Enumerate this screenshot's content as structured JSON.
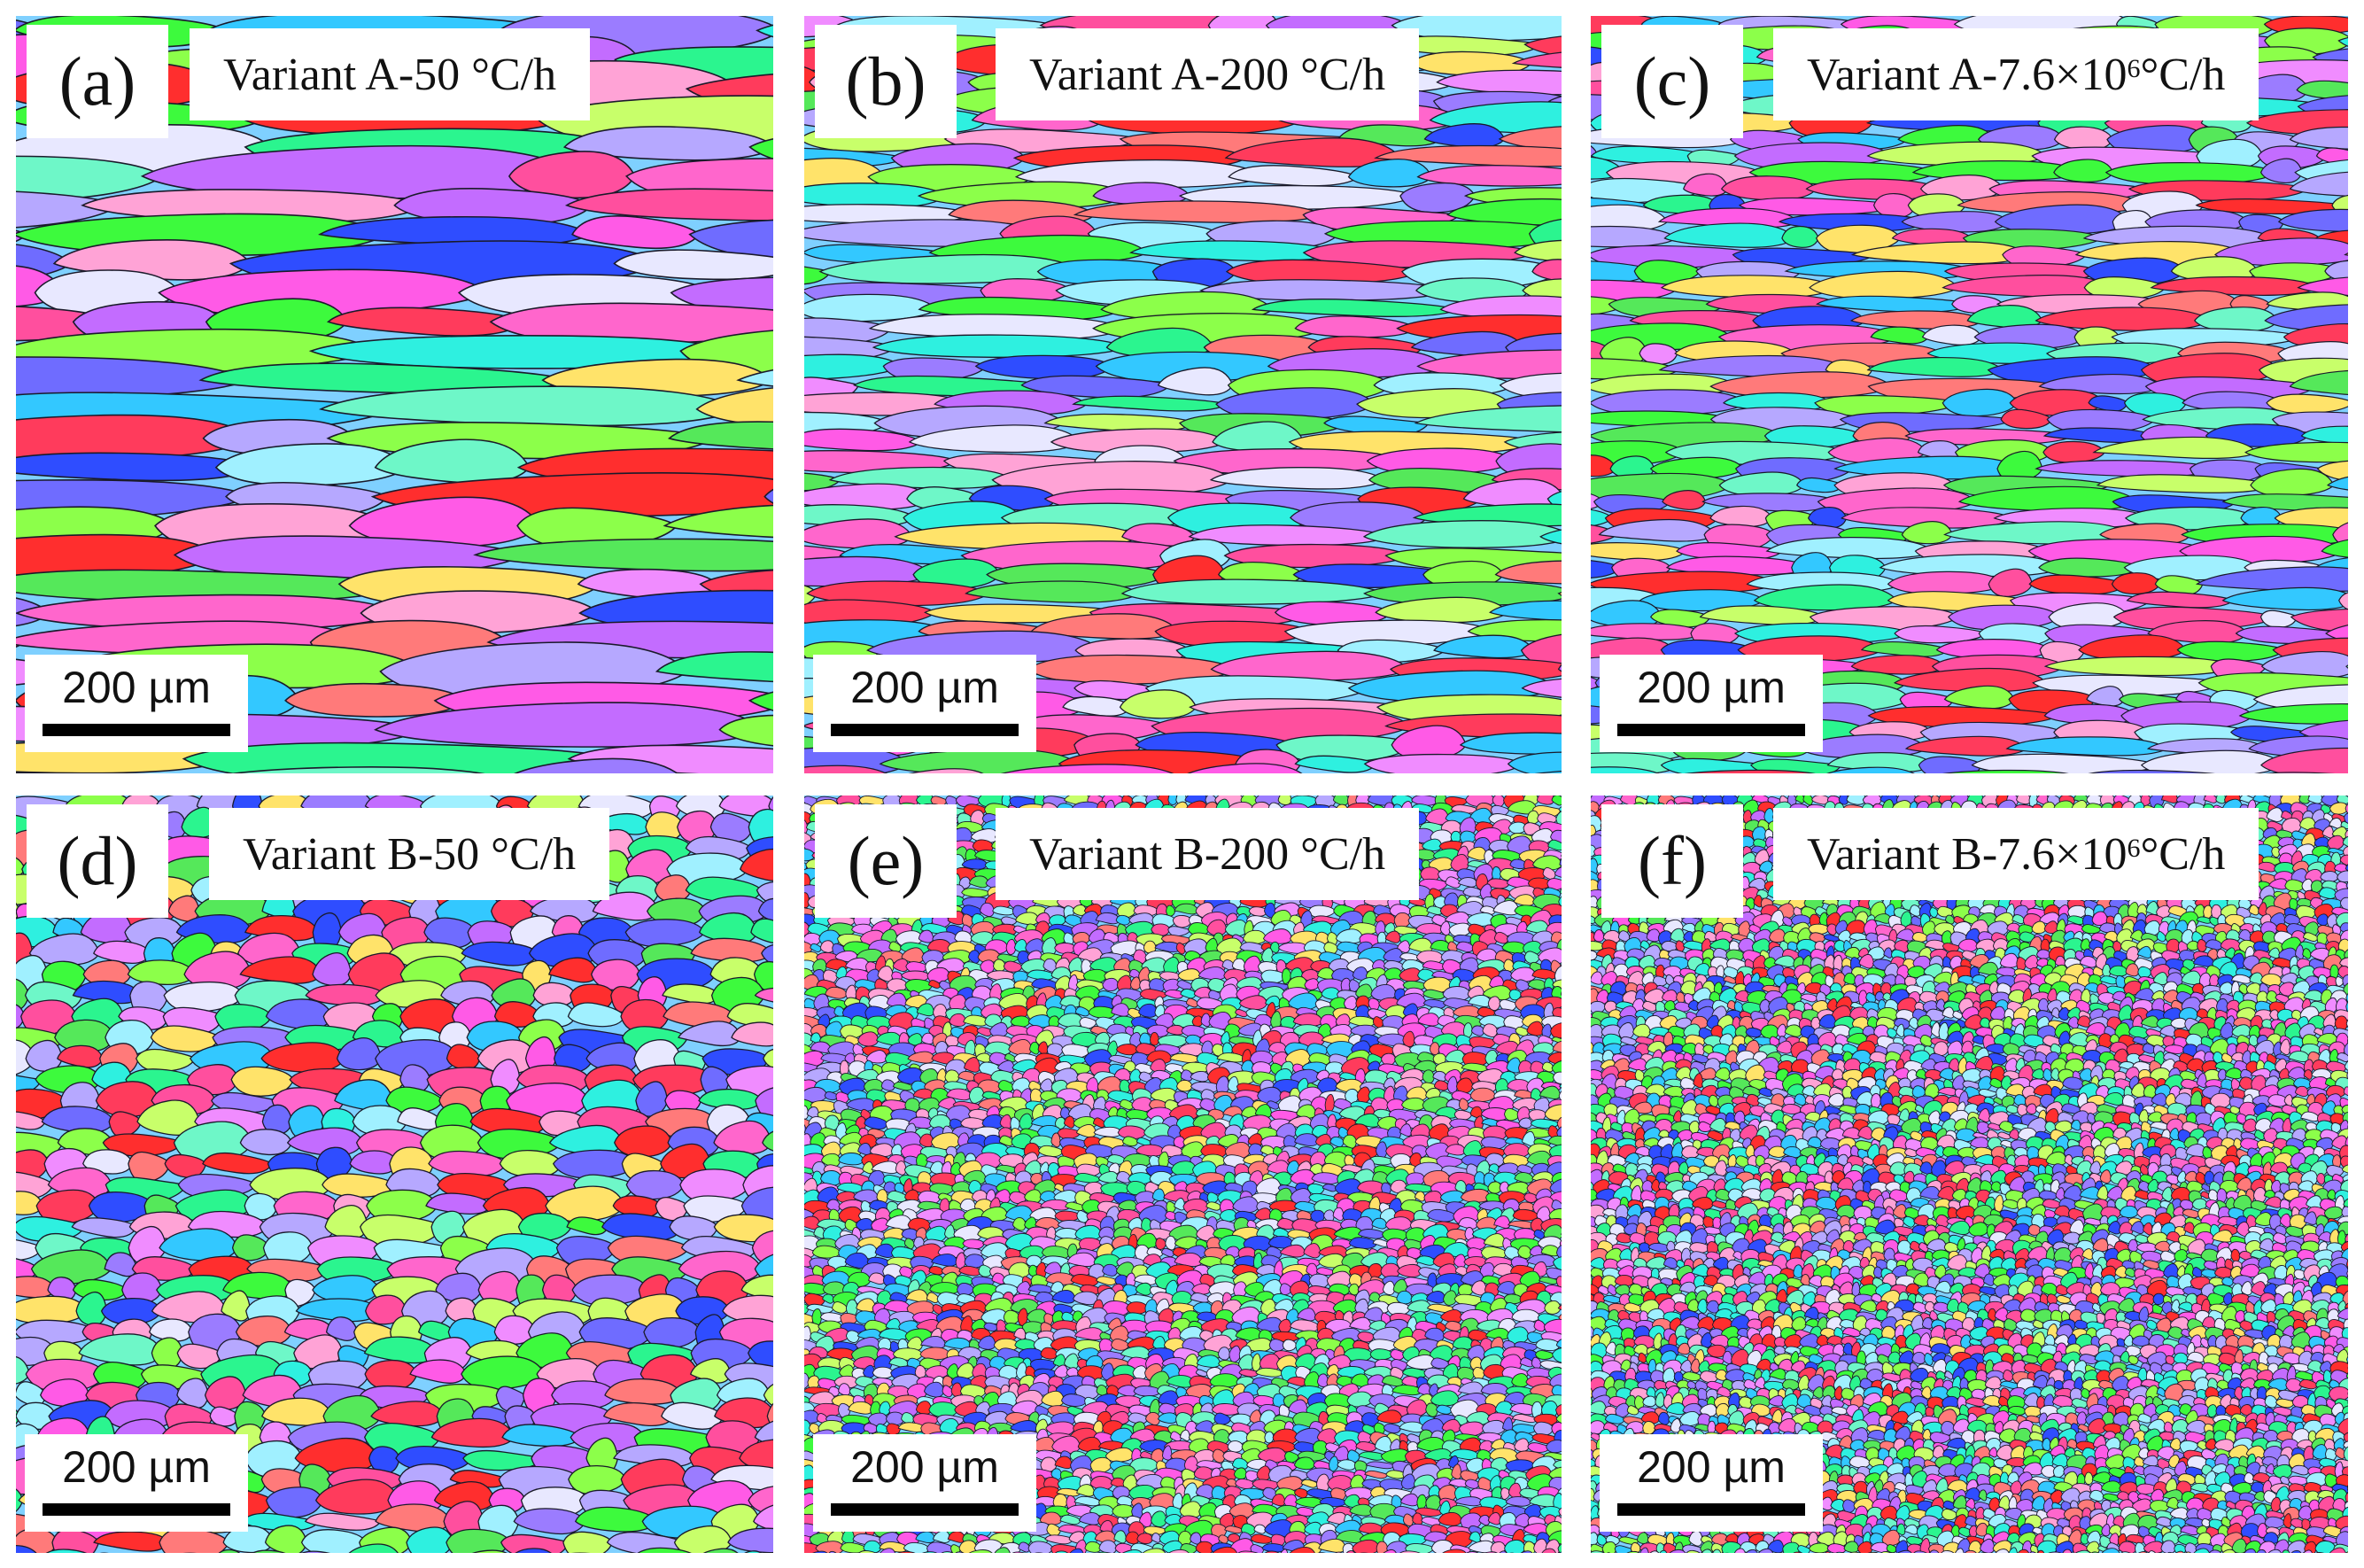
{
  "panels": [
    {
      "letter": "(a)",
      "title_main": "Variant A-50 °C/h",
      "title_sup": "",
      "title_post": "",
      "scale": "200 µm",
      "style": "elongated"
    },
    {
      "letter": "(b)",
      "title_main": "Variant A-200 °C/h",
      "title_sup": "",
      "title_post": "",
      "scale": "200 µm",
      "style": "elongated-fine"
    },
    {
      "letter": "(c)",
      "title_main": "Variant A-7.6×10",
      "title_sup": "6",
      "title_post": " °C/h",
      "scale": "200 µm",
      "style": "elongated-finer"
    },
    {
      "letter": "(d)",
      "title_main": "Variant B-50 °C/h",
      "title_sup": "",
      "title_post": "",
      "scale": "200 µm",
      "style": "equiaxed-coarse"
    },
    {
      "letter": "(e)",
      "title_main": "Variant B-200 °C/h",
      "title_sup": "",
      "title_post": "",
      "scale": "200 µm",
      "style": "equiaxed-fine"
    },
    {
      "letter": "(f)",
      "title_main": "Variant B-7.6×10",
      "title_sup": "6",
      "title_post": " °C/h",
      "scale": "200 µm",
      "style": "equiaxed-finest"
    }
  ],
  "palette": [
    "#ff3b5c",
    "#ff4f9e",
    "#ff5ae6",
    "#c36cff",
    "#9b7cff",
    "#6f6cff",
    "#2f4dff",
    "#33c8ff",
    "#2ef0e0",
    "#2bf58f",
    "#3dfa3d",
    "#8cff4a",
    "#c8ff6a",
    "#ffe36a",
    "#ffa3d6",
    "#f08cff",
    "#ff2e2e",
    "#ff7a7a",
    "#b6a8ff",
    "#6ef7c8",
    "#a0f0ff",
    "#ff66cc",
    "#55e85a",
    "#e8e8ff"
  ]
}
